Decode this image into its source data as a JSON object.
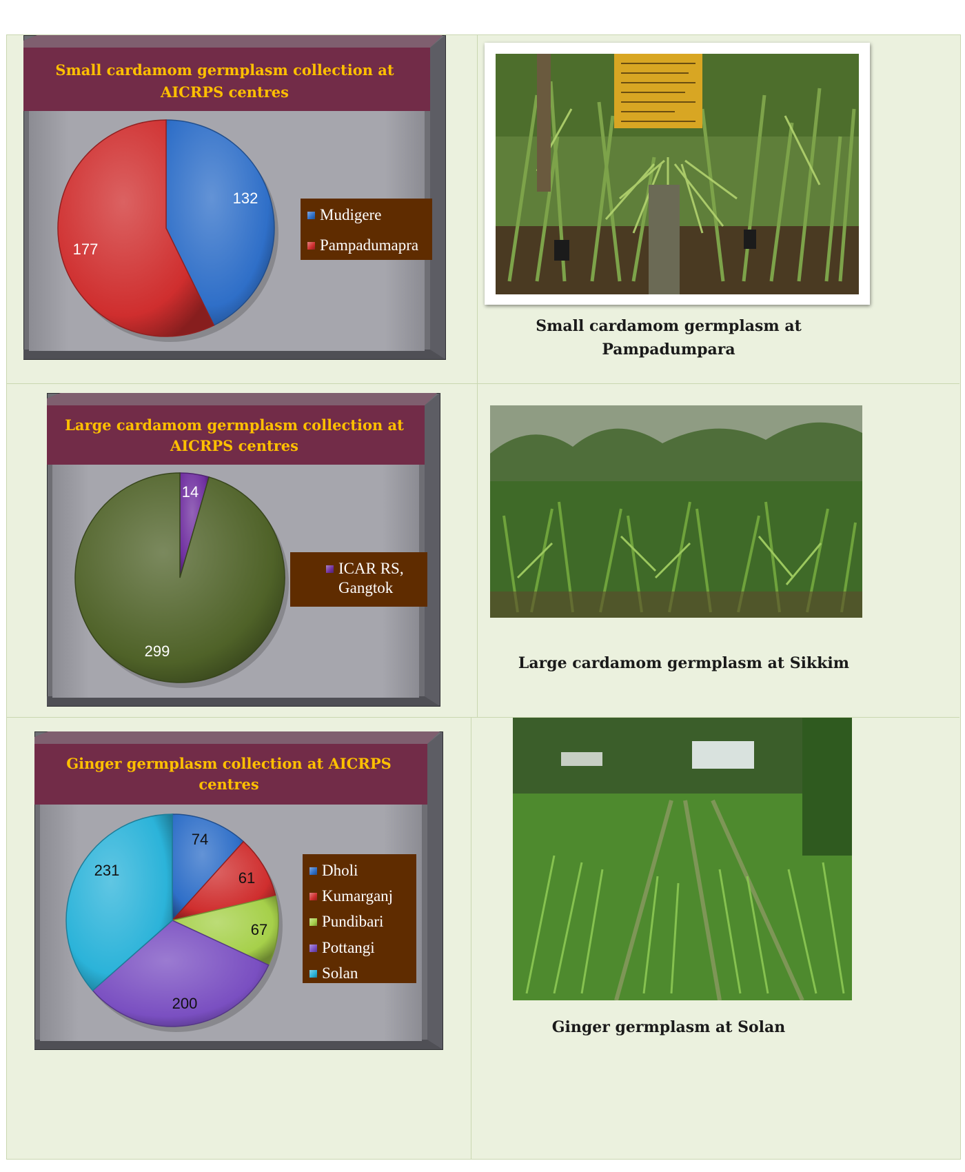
{
  "chart_data": [
    {
      "type": "pie",
      "title": "Small cardamom germplasm collection at AICRPS centres",
      "title_lines": [
        "Small cardamom germplasm collection at",
        "AICRPS centres"
      ],
      "categories": [
        "Mudigere",
        "Pampadumapra"
      ],
      "values": [
        132,
        177
      ],
      "value_labels": [
        "132",
        "177"
      ],
      "colors": [
        "#2f6fc8",
        "#cf2e2e"
      ],
      "legend": {
        "placement": "right",
        "entries": [
          {
            "label": "Mudigere",
            "color": "#2f6fc8"
          },
          {
            "label": "Pampadumapra",
            "color": "#cf2e2e"
          }
        ]
      }
    },
    {
      "type": "pie",
      "title": "Large cardamom germplasm collection at AICRPS centres",
      "title_lines": [
        "Large cardamom germplasm collection at",
        "AICRPS centres"
      ],
      "categories": [
        "ICAR RS, Gangtok",
        ""
      ],
      "values": [
        14,
        299
      ],
      "value_labels": [
        "14",
        "299"
      ],
      "colors": [
        "#7030a0",
        "#4f6228"
      ],
      "legend": {
        "placement": "right",
        "entries": [
          {
            "label": "ICAR RS,",
            "label2": "Gangtok",
            "color": "#7030a0"
          }
        ]
      }
    },
    {
      "type": "pie",
      "title": "Ginger germplasm collection at AICRPS centres",
      "title_lines": [
        "Ginger germplasm collection at AICRPS",
        "centres"
      ],
      "categories": [
        "Dholi",
        "Kumarganj",
        "Pundibari",
        "Pottangi",
        "Solan"
      ],
      "values": [
        74,
        61,
        67,
        200,
        231
      ],
      "value_labels": [
        "74",
        "61",
        "67",
        "200",
        "231"
      ],
      "colors": [
        "#2f6fc8",
        "#cf2e2e",
        "#a6d04a",
        "#7a4fc1",
        "#2bb3d9"
      ],
      "legend": {
        "placement": "right",
        "entries": [
          {
            "label": "Dholi",
            "color": "#2f6fc8"
          },
          {
            "label": "Kumarganj",
            "color": "#cf2e2e"
          },
          {
            "label": "Pundibari",
            "color": "#a6d04a"
          },
          {
            "label": "Pottangi",
            "color": "#7a4fc1"
          },
          {
            "label": "Solan",
            "color": "#2bb3d9"
          }
        ]
      }
    }
  ],
  "photos": [
    {
      "caption_lines": [
        "Small cardamom germplasm at",
        "Pampadumpara"
      ]
    },
    {
      "caption_lines": [
        "Large cardamom germplasm at Sikkim"
      ]
    },
    {
      "caption_lines": [
        "Ginger germplasm at Solan"
      ]
    }
  ],
  "colors": {
    "title_band": "#722c48",
    "title_text": "#ffc000",
    "plot_area": "#a6a6ad",
    "legend_bg": "#5f2c00",
    "cell_bg": "#ebf1de"
  }
}
